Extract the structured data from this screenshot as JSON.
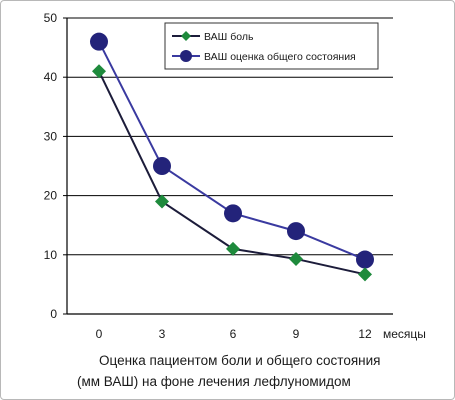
{
  "chart_data": {
    "type": "line",
    "x": [
      0,
      3,
      6,
      9,
      12
    ],
    "x_unit_label": "месяцы",
    "y_ticks": [
      0,
      10,
      20,
      30,
      40,
      50
    ],
    "ylim": [
      0,
      50
    ],
    "grid": "horizontal",
    "legend_position": "top-right",
    "series": [
      {
        "name": "ВАШ боль",
        "marker": "diamond",
        "color": "#1e8a3c",
        "line_color": "#1c1c3a",
        "values": [
          41,
          19,
          11,
          9.3,
          6.7
        ]
      },
      {
        "name": "ВАШ оценка общего состояния",
        "marker": "circle",
        "color": "#23237a",
        "line_color": "#3a3aa0",
        "values": [
          46,
          25,
          17,
          14,
          9.2
        ]
      }
    ],
    "caption_lines": [
      "Оценка пациентом боли и общего состояния",
      "(мм ВАШ) на фоне лечения лефлуномидом"
    ]
  }
}
